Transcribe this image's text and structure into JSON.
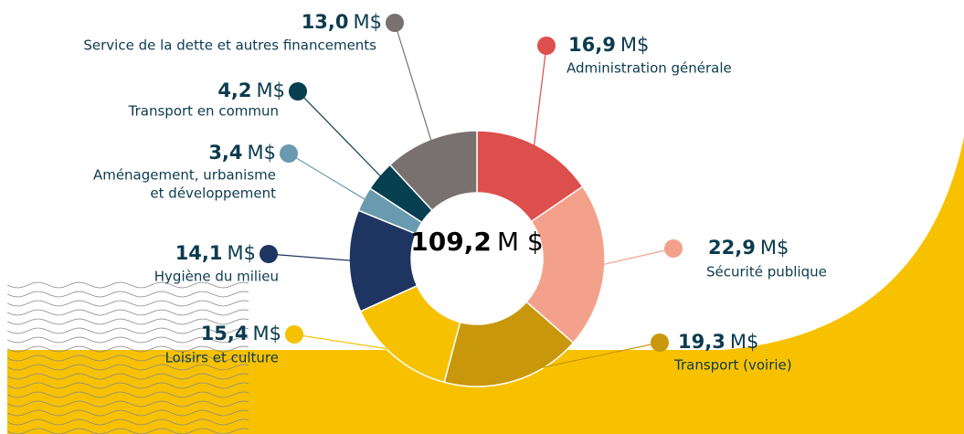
{
  "chart_data": {
    "type": "donut",
    "unit": "M$",
    "total": {
      "value": 109.2,
      "label": "109,2"
    },
    "total_unit": "M $",
    "categories": [
      "Administration générale",
      "Sécurité publique",
      "Transport (voirie)",
      "Loisirs et culture",
      "Hygiène du milieu",
      [
        "Aménagement, urbanisme",
        "et développement"
      ],
      "Transport en commun",
      "Service de la dette et autres financements"
    ],
    "values": [
      16.9,
      22.9,
      19.3,
      15.4,
      14.1,
      3.4,
      4.2,
      13.0
    ],
    "value_labels": [
      "16,9",
      "22,9",
      "19,3",
      "15,4",
      "14,1",
      "3,4",
      "4,2",
      "13,0"
    ],
    "colors": [
      "#dc4f4c",
      "#f4a18b",
      "#c9970b",
      "#f6c100",
      "#1e3461",
      "#6a9ab0",
      "#063f4f",
      "#78716f"
    ]
  }
}
